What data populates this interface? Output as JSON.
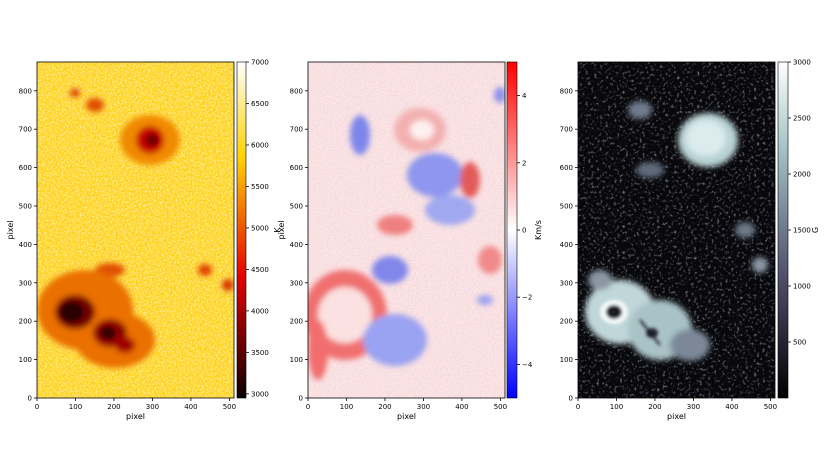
{
  "chart_data": [
    {
      "type": "heatmap",
      "panel": "temperature",
      "colormap": "hot",
      "xlabel": "pixel",
      "ylabel": "pixel",
      "xlim": [
        0,
        512
      ],
      "ylim": [
        0,
        875
      ],
      "x_ticks": [
        0,
        100,
        200,
        300,
        400,
        500
      ],
      "y_ticks": [
        0,
        100,
        200,
        300,
        400,
        500,
        600,
        700,
        800
      ],
      "colorbar": {
        "label": "K",
        "range": [
          2950,
          7000
        ],
        "ticks": [
          3000,
          3500,
          4000,
          4500,
          5000,
          5500,
          6000,
          6500,
          7000
        ]
      }
    },
    {
      "type": "heatmap",
      "panel": "velocity",
      "colormap": "bwr",
      "xlabel": "pixel",
      "ylabel": "pixel",
      "xlim": [
        0,
        512
      ],
      "ylim": [
        0,
        875
      ],
      "x_ticks": [
        0,
        100,
        200,
        300,
        400,
        500
      ],
      "y_ticks": [
        0,
        100,
        200,
        300,
        400,
        500,
        600,
        700,
        800
      ],
      "colorbar": {
        "label": "Km/s",
        "range": [
          -5,
          5
        ],
        "ticks": [
          4,
          2,
          0,
          -2,
          -4
        ],
        "tick_labels": [
          "4",
          "2",
          "0",
          "−2",
          "−4"
        ]
      }
    },
    {
      "type": "heatmap",
      "panel": "magnetic-field",
      "colormap": "bone",
      "xlabel": "pixel",
      "ylabel": "",
      "xlim": [
        0,
        512
      ],
      "ylim": [
        0,
        875
      ],
      "x_ticks": [
        0,
        100,
        200,
        300,
        400,
        500
      ],
      "y_ticks": [
        0,
        100,
        200,
        300,
        400,
        500,
        600,
        700,
        800
      ],
      "colorbar": {
        "label": "G",
        "range": [
          0,
          3000
        ],
        "ticks": [
          500,
          1000,
          1500,
          2000,
          2500,
          3000
        ]
      }
    }
  ]
}
